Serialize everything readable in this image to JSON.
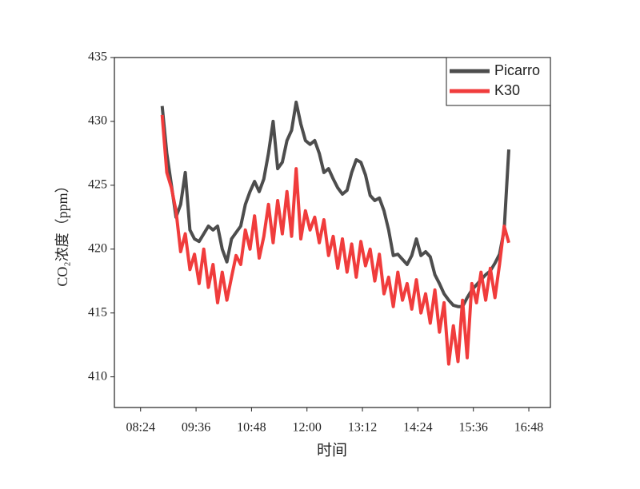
{
  "chart_data": {
    "type": "line",
    "x_label": "时间",
    "y_label": "CO₂浓度（ppm）",
    "xlim": [
      "07:50",
      "17:16"
    ],
    "xticks": [
      "08:24",
      "09:36",
      "10:48",
      "12:00",
      "13:12",
      "14:24",
      "15:36",
      "16:48"
    ],
    "ylim": [
      407.6,
      435
    ],
    "yticks": [
      410,
      415,
      420,
      425,
      430,
      435
    ],
    "legend": "upper right",
    "x": [
      "08:52",
      "08:58",
      "09:04",
      "09:10",
      "09:16",
      "09:22",
      "09:28",
      "09:34",
      "09:40",
      "09:46",
      "09:52",
      "09:58",
      "10:04",
      "10:10",
      "10:16",
      "10:22",
      "10:28",
      "10:34",
      "10:40",
      "10:46",
      "10:52",
      "10:58",
      "11:04",
      "11:10",
      "11:16",
      "11:22",
      "11:28",
      "11:34",
      "11:40",
      "11:46",
      "11:52",
      "11:58",
      "12:04",
      "12:10",
      "12:16",
      "12:22",
      "12:28",
      "12:34",
      "12:40",
      "12:46",
      "12:52",
      "12:58",
      "13:04",
      "13:10",
      "13:16",
      "13:22",
      "13:28",
      "13:34",
      "13:40",
      "13:46",
      "13:52",
      "13:58",
      "14:04",
      "14:10",
      "14:16",
      "14:22",
      "14:28",
      "14:34",
      "14:40",
      "14:46",
      "14:52",
      "14:58",
      "15:04",
      "15:10",
      "15:16",
      "15:22",
      "15:28",
      "15:34",
      "15:40",
      "15:46",
      "15:52",
      "15:58",
      "16:04",
      "16:10",
      "16:16",
      "16:22"
    ],
    "series": [
      {
        "name": "Picarro",
        "color": "#4d4d4d",
        "values": [
          431.2,
          427.5,
          425,
          422.5,
          423.5,
          426,
          421.5,
          420.8,
          420.6,
          421.2,
          421.8,
          421.5,
          421.8,
          420,
          419,
          420.8,
          421.3,
          421.8,
          423.5,
          424.5,
          425.3,
          424.5,
          425.5,
          427.5,
          430,
          426.3,
          426.8,
          428.5,
          429.3,
          431.5,
          429.8,
          428.5,
          428.2,
          428.5,
          427.5,
          426,
          426.3,
          425.5,
          424.8,
          424.3,
          424.6,
          426,
          427,
          426.8,
          425.8,
          424.2,
          423.8,
          424,
          423,
          421.5,
          419.5,
          419.6,
          419.2,
          418.8,
          419.5,
          420.8,
          419.5,
          419.8,
          419.4,
          418,
          417.3,
          416.5,
          416,
          415.6,
          415.5,
          415.5,
          416.2,
          416.8,
          417.2,
          417.6,
          418,
          418.3,
          418.9,
          419.6,
          421.5,
          427.8
        ]
      },
      {
        "name": "K30",
        "color": "#f03c3c",
        "values": [
          430.5,
          426,
          424.8,
          423,
          419.8,
          421.2,
          418.4,
          419.6,
          417.3,
          420,
          417,
          418.8,
          415.8,
          418.2,
          416,
          417.8,
          419.5,
          418.8,
          421.5,
          420,
          422.6,
          419.3,
          421,
          423.5,
          420.5,
          423.8,
          421.2,
          424.5,
          421,
          426.3,
          420.8,
          423,
          421.5,
          422.5,
          420.5,
          422.3,
          419.5,
          421,
          418.5,
          420.8,
          418.2,
          420.4,
          417.8,
          420.6,
          418.7,
          420,
          417.5,
          419.6,
          416.5,
          417.8,
          415.5,
          418.2,
          416,
          417.3,
          415.3,
          417.6,
          415,
          416.5,
          414.2,
          416.8,
          413.5,
          415.8,
          411,
          414,
          411.2,
          416,
          411.5,
          417.3,
          415.8,
          418.2,
          416,
          418.5,
          416.2,
          418.8,
          421.8,
          420.5
        ]
      }
    ]
  }
}
